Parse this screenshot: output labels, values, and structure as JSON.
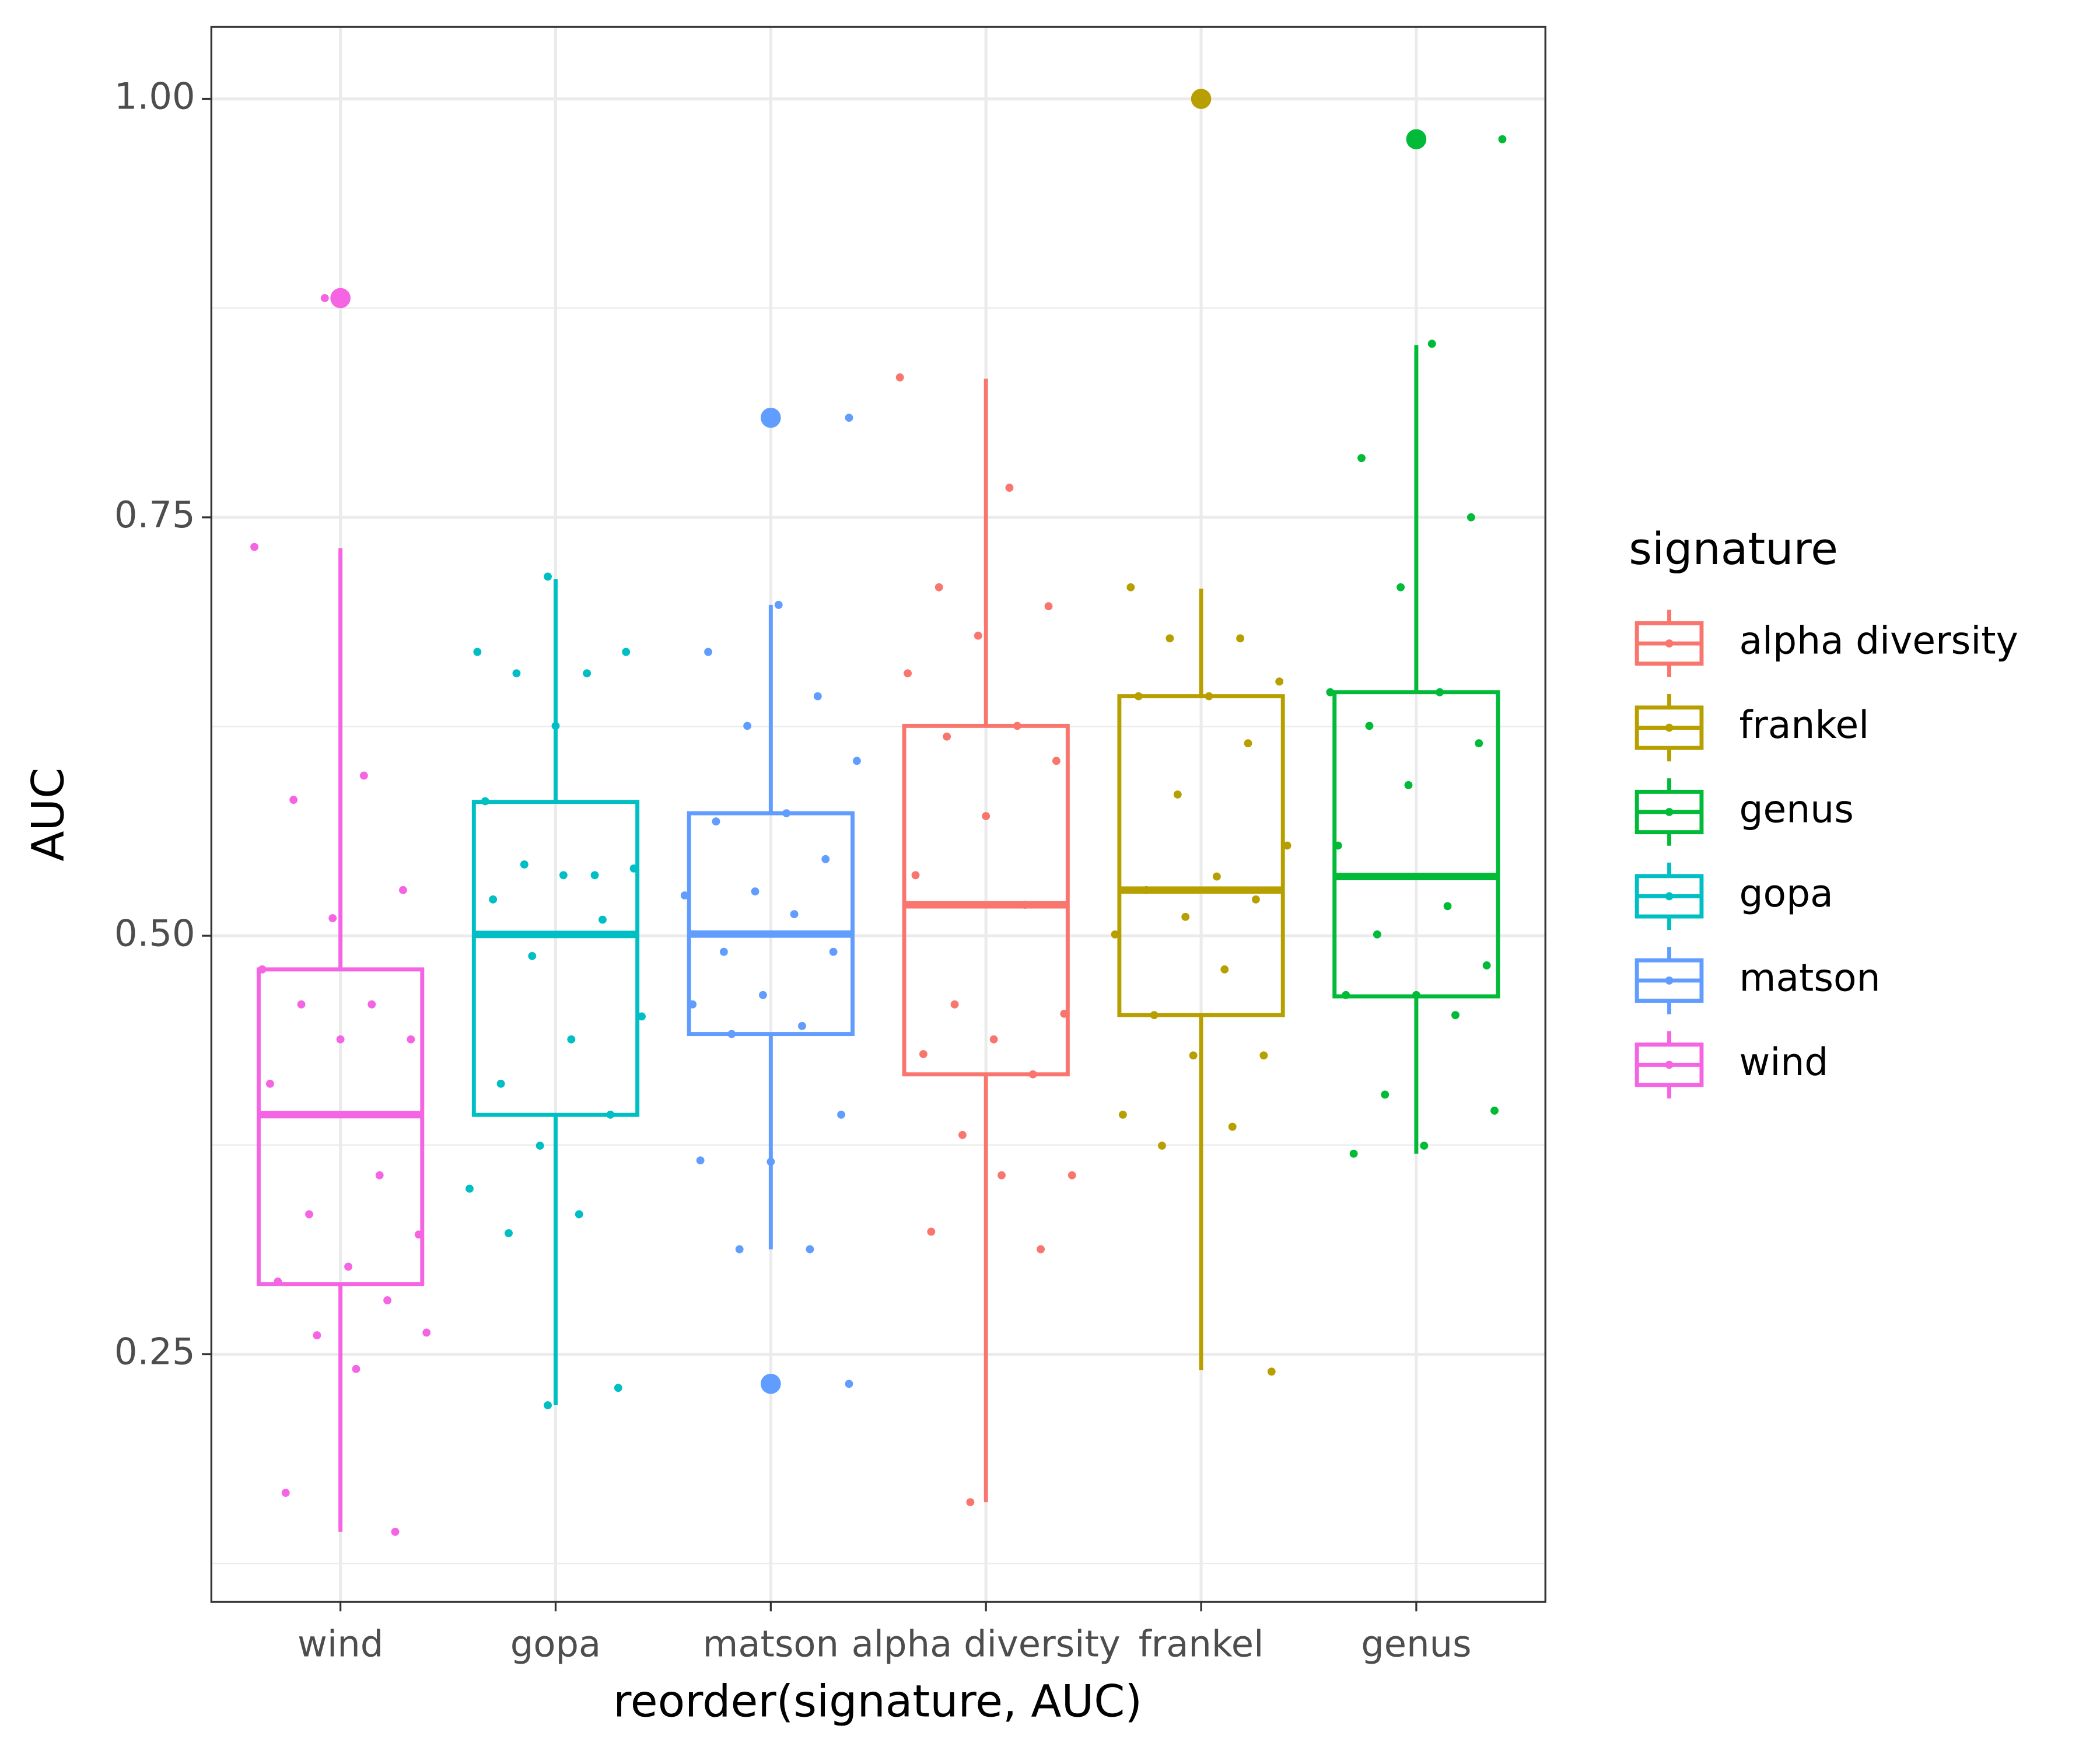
{
  "chart_data": {
    "type": "box",
    "x_label": "reorder(signature, AUC)",
    "y_label": "AUC",
    "legend_title": "signature",
    "categories": [
      "wind",
      "gopa",
      "matson",
      "alpha diversity",
      "frankel",
      "genus"
    ],
    "ylim": [
      0.102,
      1.043
    ],
    "yticks": [
      0.25,
      {
        "value": 0.5,
        "label": "0.50"
      },
      0.75,
      {
        "value": 1.0,
        "label": "1.00"
      }
    ],
    "yminor_ticks": [
      0.125,
      0.375,
      0.625,
      0.875
    ],
    "grid": true,
    "legend_position": "right",
    "series": [
      {
        "name": "alpha diversity",
        "color": "#F8766D",
        "whisker_low": 0.1616,
        "q1": 0.4172,
        "median": 0.5185,
        "q3": 0.6254,
        "whisker_high": 0.8328,
        "outliers": [],
        "points": [
          0.8336,
          0.7677,
          0.7082,
          0.6969,
          0.6793,
          0.6568,
          0.6254,
          0.619,
          0.6045,
          0.5715,
          0.5362,
          0.5185,
          0.459,
          0.4534,
          0.4381,
          0.4293,
          0.4172,
          0.381,
          0.3569,
          0.3569,
          0.3232,
          0.3127,
          0.1616
        ]
      },
      {
        "name": "frankel",
        "color": "#B79F00",
        "whisker_low": 0.2404,
        "q1": 0.4526,
        "median": 0.5273,
        "q3": 0.6431,
        "whisker_high": 0.7074,
        "outliers": [
          1.0
        ],
        "points": [
          1.0,
          0.7082,
          0.6777,
          0.6777,
          0.6519,
          0.6431,
          0.6431,
          0.615,
          0.5844,
          0.5539,
          0.5354,
          0.5273,
          0.5217,
          0.5113,
          0.5008,
          0.4799,
          0.4526,
          0.4285,
          0.4285,
          0.3931,
          0.3859,
          0.3746,
          0.2396
        ]
      },
      {
        "name": "genus",
        "color": "#00BA38",
        "whisker_low": 0.3698,
        "q1": 0.4638,
        "median": 0.5354,
        "q3": 0.6455,
        "whisker_high": 0.8529,
        "outliers": [
          0.9759
        ],
        "points": [
          0.9759,
          0.8537,
          0.7854,
          0.75,
          0.7082,
          0.6455,
          0.6455,
          0.6254,
          0.615,
          0.59,
          0.5539,
          0.5177,
          0.5008,
          0.4823,
          0.4646,
          0.4646,
          0.4526,
          0.4051,
          0.3955,
          0.3746,
          0.3698
        ]
      },
      {
        "name": "gopa",
        "color": "#00BFC4",
        "whisker_low": 0.2195,
        "q1": 0.393,
        "median": 0.5008,
        "q3": 0.58,
        "whisker_high": 0.713,
        "outliers": [],
        "points": [
          0.7146,
          0.6696,
          0.6568,
          0.6568,
          0.6696,
          0.6254,
          0.5804,
          0.5362,
          0.5426,
          0.5402,
          0.5362,
          0.5217,
          0.5096,
          0.4879,
          0.4518,
          0.4381,
          0.4116,
          0.3931,
          0.3746,
          0.3489,
          0.3336,
          0.3223,
          0.2299,
          0.2195
        ]
      },
      {
        "name": "matson",
        "color": "#619CFF",
        "whisker_low": 0.3127,
        "q1": 0.4413,
        "median": 0.501,
        "q3": 0.5732,
        "whisker_high": 0.6977,
        "outliers": [
          0.8095,
          0.2323
        ],
        "points": [
          0.8095,
          0.6977,
          0.6696,
          0.6431,
          0.6254,
          0.6045,
          0.5732,
          0.5683,
          0.5458,
          0.5265,
          0.5241,
          0.5129,
          0.4904,
          0.4904,
          0.4646,
          0.459,
          0.4461,
          0.4413,
          0.3931,
          0.365,
          0.3658,
          0.3127,
          0.3127,
          0.2323
        ]
      },
      {
        "name": "wind",
        "color": "#F564E3",
        "whisker_low": 0.1439,
        "q1": 0.2918,
        "median": 0.3931,
        "q3": 0.4799,
        "whisker_high": 0.7315,
        "outliers": [
          0.881
        ],
        "points": [
          0.881,
          0.7323,
          0.5957,
          0.5812,
          0.5273,
          0.5105,
          0.4799,
          0.459,
          0.459,
          0.4381,
          0.4381,
          0.4116,
          0.3569,
          0.3336,
          0.3215,
          0.3023,
          0.2934,
          0.2822,
          0.2613,
          0.2629,
          0.2412,
          0.1672,
          0.1439
        ]
      }
    ]
  }
}
